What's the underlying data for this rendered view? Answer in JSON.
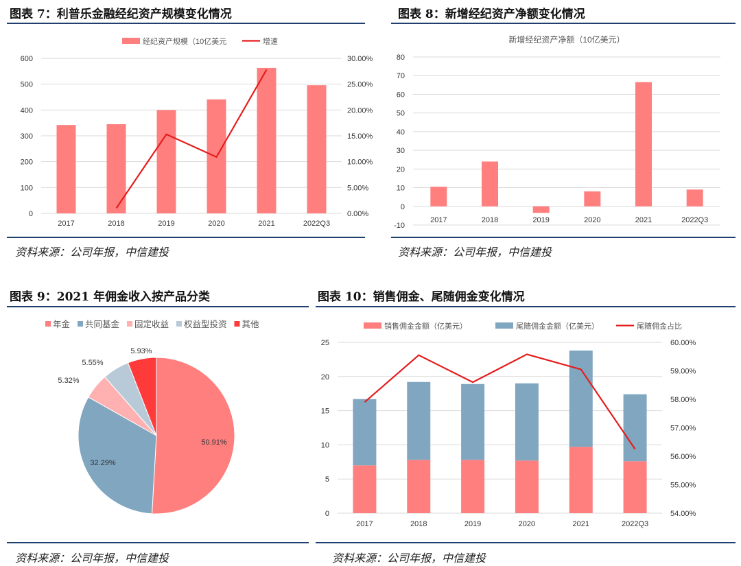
{
  "panels": [
    {
      "title": "图表 7：利普乐金融经纪资产规模变化情况",
      "source": "资料来源：公司年报，中信建投"
    },
    {
      "title": "图表 8：新增经纪资产净额变化情况",
      "source": "资料来源：公司年报，中信建投"
    },
    {
      "title": "图表 9：2021 年佣金收入按产品分类",
      "source": "资料来源：公司年报，中信建投"
    },
    {
      "title": "图表 10：销售佣金、尾随佣金变化情况",
      "source": "资料来源：公司年报，中信建投"
    }
  ],
  "colors": {
    "bar_red": "#ff7f7f",
    "line_red": "#e51c1c",
    "bar_blue": "#81a6c0",
    "pie_pink": "#ffb0b0",
    "pie_lightblue": "#b8cad8",
    "pie_red": "#ff3a3a",
    "rule": "#1f3f6e"
  },
  "chart_data": [
    {
      "type": "bar",
      "categories": [
        "2017",
        "2018",
        "2019",
        "2020",
        "2021",
        "2022Q3"
      ],
      "series": [
        {
          "name": "经纪资产规模（10亿美元",
          "type": "bar",
          "values": [
            342,
            345,
            400,
            441,
            563,
            496
          ]
        },
        {
          "name": "增速",
          "type": "line",
          "axis": "right",
          "values": [
            null,
            1.0,
            15.3,
            10.9,
            27.8,
            null
          ]
        }
      ],
      "ylim": [
        0,
        600
      ],
      "yticks": [
        "0",
        "100",
        "200",
        "300",
        "400",
        "500",
        "600"
      ],
      "y2lim": [
        0,
        30
      ],
      "y2ticks": [
        "0.00%",
        "5.00%",
        "10.00%",
        "15.00%",
        "20.00%",
        "25.00%",
        "30.00%"
      ],
      "legend": "top",
      "grid": true
    },
    {
      "type": "bar",
      "categories": [
        "2017",
        "2018",
        "2019",
        "2020",
        "2021",
        "2022Q3"
      ],
      "values": [
        10.5,
        24,
        -3.5,
        8,
        66.5,
        9
      ],
      "title": "新增经纪资产净额（10亿美元）",
      "ylim": [
        -10,
        80
      ],
      "yticks": [
        "-10",
        "0",
        "10",
        "20",
        "30",
        "40",
        "50",
        "60",
        "70",
        "80"
      ],
      "grid": true
    },
    {
      "type": "pie",
      "labels": [
        "年金",
        "共同基金",
        "固定收益",
        "权益型投资",
        "其他"
      ],
      "values": [
        50.91,
        32.29,
        5.32,
        5.55,
        5.93
      ],
      "value_labels": [
        "50.91%",
        "32.29%",
        "5.32%",
        "5.55%",
        "5.93%"
      ],
      "legend": "top"
    },
    {
      "type": "bar",
      "stacked": true,
      "categories": [
        "2017",
        "2018",
        "2019",
        "2020",
        "2021",
        "2022Q3"
      ],
      "series": [
        {
          "name": "销售佣金金额（亿美元）",
          "type": "bar",
          "values": [
            7.0,
            7.8,
            7.8,
            7.7,
            9.7,
            7.6
          ]
        },
        {
          "name": "尾随佣金金额（亿美元）",
          "type": "bar",
          "values": [
            9.7,
            11.4,
            11.1,
            11.3,
            14.1,
            9.8
          ]
        },
        {
          "name": "尾随佣金占比",
          "type": "line",
          "axis": "right",
          "values": [
            57.9,
            59.55,
            58.6,
            59.58,
            59.05,
            56.25
          ]
        }
      ],
      "ylim": [
        0,
        25
      ],
      "yticks": [
        "0",
        "5",
        "10",
        "15",
        "20",
        "25"
      ],
      "y2lim": [
        54,
        60
      ],
      "y2ticks": [
        "54.00%",
        "55.00%",
        "56.00%",
        "57.00%",
        "58.00%",
        "59.00%",
        "60.00%"
      ],
      "legend": "top",
      "grid": true
    }
  ]
}
